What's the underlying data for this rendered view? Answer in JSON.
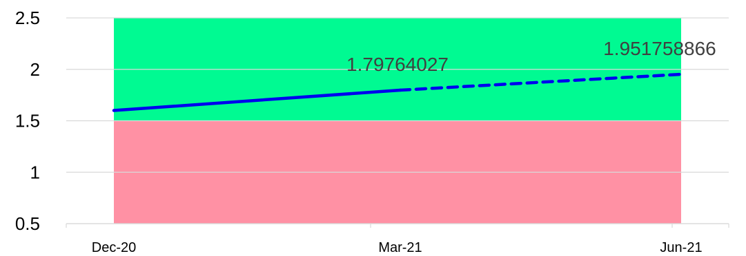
{
  "chart_data": {
    "type": "line",
    "title": "",
    "xlabel": "",
    "ylabel": "",
    "ylim": [
      0.5,
      2.5
    ],
    "yticks": [
      "0.5",
      "1",
      "1.5",
      "2",
      "2.5"
    ],
    "ytick_values": [
      0.5,
      1,
      1.5,
      2,
      2.5
    ],
    "categories": [
      "Dec-20",
      "Mar-21",
      "Jun-21"
    ],
    "grid": "horizontal",
    "legend": "none",
    "bands": [
      {
        "from": 0.5,
        "to": 1.5,
        "color": "#ff91a4"
      },
      {
        "from": 1.5,
        "to": 2.5,
        "color": "#00fa92"
      }
    ],
    "series": [
      {
        "values": [
          1.6,
          1.79764027,
          1.951758866
        ],
        "color": "#0000ee",
        "solid_until_index": 1,
        "dashed_from_index": 1,
        "data_labels": [
          {
            "index": 1,
            "text": "1.79764027"
          },
          {
            "index": 2,
            "text": "1.951758866"
          }
        ]
      }
    ]
  }
}
